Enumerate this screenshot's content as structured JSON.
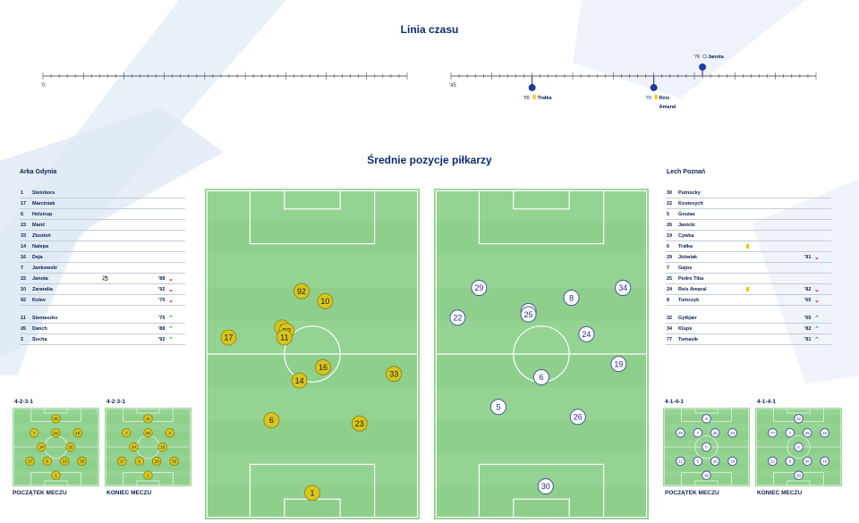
{
  "timeline": {
    "title": "Linia czasu",
    "first_half_start": "'0",
    "second_half_start": "'45",
    "events": [
      {
        "minute": "'55",
        "player": "Trałka",
        "type": "yellow-card",
        "side": "bottom"
      },
      {
        "minute": "'70",
        "player": "Reis Amaral",
        "type": "yellow-card",
        "side": "bottom"
      },
      {
        "minute": "'76",
        "player": "Janota",
        "type": "goal",
        "side": "top"
      }
    ]
  },
  "positions": {
    "title": "Średnie pozycje piłkarzy"
  },
  "home": {
    "name": "Arka Gdynia",
    "color": "#d6c21a",
    "starters": [
      {
        "num": "1",
        "name": "Steinbors"
      },
      {
        "num": "17",
        "name": "Marciniak"
      },
      {
        "num": "6",
        "name": "Helstrup"
      },
      {
        "num": "23",
        "name": "Marić"
      },
      {
        "num": "33",
        "name": "Zbozień"
      },
      {
        "num": "14",
        "name": "Nalepa"
      },
      {
        "num": "16",
        "name": "Deja"
      },
      {
        "num": "7",
        "name": "Jankowski"
      },
      {
        "num": "22",
        "name": "Janota",
        "goal": true,
        "sub": "'88",
        "dir": "out"
      },
      {
        "num": "10",
        "name": "Zarandia",
        "sub": "'92",
        "dir": "out"
      },
      {
        "num": "92",
        "name": "Kolev",
        "sub": "'75",
        "dir": "out"
      }
    ],
    "subs": [
      {
        "num": "11",
        "name": "Siemaszko",
        "sub": "'75",
        "dir": "in"
      },
      {
        "num": "26",
        "name": "Danch",
        "sub": "'88",
        "dir": "in"
      },
      {
        "num": "2",
        "name": "Socha",
        "sub": "'92",
        "dir": "in"
      }
    ],
    "avg_positions": [
      {
        "num": "92"
      },
      {
        "num": "10"
      },
      {
        "num": "7"
      },
      {
        "num": "22"
      },
      {
        "num": "11"
      },
      {
        "num": "17"
      },
      {
        "num": "16"
      },
      {
        "num": "14"
      },
      {
        "num": "33"
      },
      {
        "num": "6"
      },
      {
        "num": "23"
      },
      {
        "num": "1"
      }
    ],
    "formation_start": {
      "label": "4-2-3-1",
      "phase": "POCZĄTEK MECZU",
      "rows": [
        [
          "92"
        ],
        [
          "7",
          "22",
          "10"
        ],
        [
          "14",
          "16"
        ],
        [
          "17",
          "6",
          "23",
          "33"
        ],
        [
          "1"
        ]
      ]
    },
    "formation_end": {
      "label": "4-2-3-1",
      "phase": "KONIEC MECZU",
      "rows": [
        [
          "11"
        ],
        [
          "7",
          "26",
          "2"
        ],
        [
          "14",
          "16"
        ],
        [
          "17",
          "6",
          "23",
          "33"
        ],
        [
          "1"
        ]
      ]
    }
  },
  "away": {
    "name": "Lech Poznań",
    "color": "#3b46a6",
    "starters": [
      {
        "num": "30",
        "name": "Putnocky"
      },
      {
        "num": "22",
        "name": "Kostevych"
      },
      {
        "num": "5",
        "name": "Goutas"
      },
      {
        "num": "26",
        "name": "Janicki"
      },
      {
        "num": "19",
        "name": "Cywka"
      },
      {
        "num": "6",
        "name": "Trałka",
        "card": true
      },
      {
        "num": "29",
        "name": "Jóźwiak",
        "sub": "'91",
        "dir": "out"
      },
      {
        "num": "7",
        "name": "Gajos"
      },
      {
        "num": "25",
        "name": "Pedro Tiba"
      },
      {
        "num": "24",
        "name": "Reis Amaral",
        "card": true,
        "sub": "'82",
        "dir": "out"
      },
      {
        "num": "8",
        "name": "Tomczyk",
        "sub": "'65",
        "dir": "out"
      }
    ],
    "subs": [
      {
        "num": "32",
        "name": "Gytkjær",
        "sub": "'65",
        "dir": "in"
      },
      {
        "num": "34",
        "name": "Klupś",
        "sub": "'82",
        "dir": "in"
      },
      {
        "num": "77",
        "name": "Tomasik",
        "sub": "'91",
        "dir": "in"
      }
    ],
    "avg_positions": [
      {
        "num": "29"
      },
      {
        "num": "34"
      },
      {
        "num": "8"
      },
      {
        "num": "22"
      },
      {
        "num": "7"
      },
      {
        "num": "25"
      },
      {
        "num": "24"
      },
      {
        "num": "6"
      },
      {
        "num": "19"
      },
      {
        "num": "5"
      },
      {
        "num": "26"
      },
      {
        "num": "30"
      }
    ],
    "formation_start": {
      "label": "4-1-4-1",
      "phase": "POCZĄTEK MECZU",
      "rows": [
        [
          "8"
        ],
        [
          "29",
          "7",
          "25",
          "24"
        ],
        [
          "6"
        ],
        [
          "22",
          "5",
          "26",
          "19"
        ],
        [
          "30"
        ]
      ]
    },
    "formation_end": {
      "label": "4-1-4-1",
      "phase": "KONIEC MECZU",
      "rows": [
        [
          "32"
        ],
        [
          "77",
          "7",
          "25",
          "34"
        ],
        [
          "6"
        ],
        [
          "22",
          "5",
          "26",
          "19"
        ],
        [
          "30"
        ]
      ]
    }
  }
}
